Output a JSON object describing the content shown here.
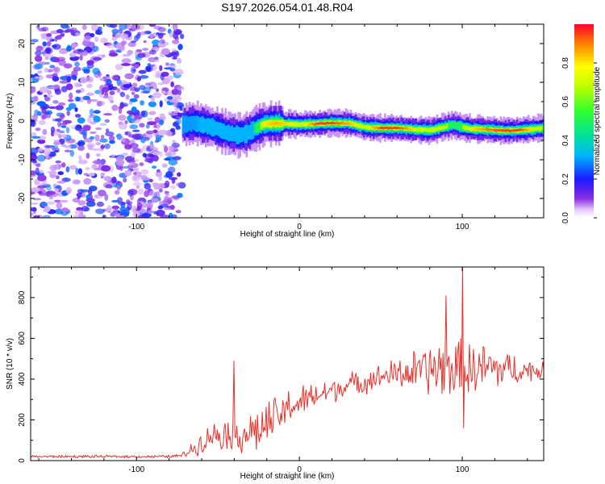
{
  "chart_data": [
    {
      "type": "heatmap",
      "title": "S197.2026.054.01.48.R04",
      "xlabel": "Height of straight line (km)",
      "ylabel": "Frequency (Hz)",
      "xlim": [
        -165,
        150
      ],
      "ylim": [
        -25,
        25
      ],
      "xticks": [
        -100,
        0,
        100
      ],
      "yticks": [
        -20,
        -10,
        0,
        10,
        20
      ],
      "colorbar": {
        "label": "Normalized spectral amplitude",
        "range": [
          0.0,
          1.0
        ],
        "ticks": [
          0.0,
          0.2,
          0.4,
          0.6,
          0.8
        ]
      },
      "noise_region": {
        "x_range": [
          -165,
          -72
        ],
        "amplitude_range": [
          0.05,
          0.3
        ]
      },
      "ridge": {
        "x": [
          -72,
          -65,
          -55,
          -45,
          -38,
          -33,
          -28,
          -22,
          -15,
          -5,
          0,
          10,
          20,
          30,
          40,
          50,
          60,
          70,
          80,
          88,
          94,
          98,
          105,
          115,
          125,
          135,
          145,
          150
        ],
        "freq": [
          -1.0,
          -0.5,
          -1.5,
          -3.0,
          -3.6,
          -3.3,
          -2.0,
          -0.8,
          -0.6,
          -0.8,
          -0.9,
          -0.7,
          -0.5,
          -0.6,
          -1.6,
          -1.8,
          -1.8,
          -2.2,
          -2.4,
          -1.6,
          -1.0,
          -1.5,
          -2.0,
          -2.2,
          -2.5,
          -2.4,
          -2.0,
          -1.8
        ],
        "amplitude": [
          0.3,
          0.3,
          0.35,
          0.4,
          0.35,
          0.35,
          0.45,
          0.8,
          0.85,
          0.8,
          0.7,
          0.95,
          0.95,
          0.85,
          0.75,
          0.95,
          0.95,
          0.8,
          0.75,
          0.7,
          0.55,
          0.6,
          0.8,
          0.9,
          0.95,
          0.95,
          0.75,
          0.6
        ]
      }
    },
    {
      "type": "line",
      "title": "",
      "xlabel": "Height of straight line (km)",
      "ylabel": "SNR (10 * v/v)",
      "xlim": [
        -165,
        150
      ],
      "ylim": [
        0,
        950
      ],
      "xticks": [
        -100,
        0,
        100
      ],
      "yticks": [
        0,
        200,
        400,
        600,
        800
      ],
      "color": "#e8302a",
      "envelope": {
        "x": [
          -165,
          -80,
          -72,
          -65,
          -55,
          -45,
          -35,
          -25,
          -15,
          -5,
          5,
          15,
          25,
          35,
          45,
          55,
          65,
          75,
          85,
          95,
          105,
          115,
          125,
          135,
          150
        ],
        "mean": [
          20,
          20,
          25,
          60,
          120,
          140,
          130,
          150,
          200,
          270,
          300,
          330,
          360,
          380,
          400,
          420,
          430,
          440,
          450,
          450,
          440,
          450,
          450,
          445,
          440
        ],
        "spread": [
          8,
          8,
          12,
          50,
          70,
          100,
          120,
          140,
          130,
          110,
          90,
          80,
          70,
          70,
          70,
          80,
          110,
          140,
          170,
          180,
          170,
          150,
          120,
          80,
          50
        ]
      },
      "peaks": [
        {
          "x": -40,
          "y": 490
        },
        {
          "x": 90,
          "y": 810
        },
        {
          "x": 100,
          "y": 950
        },
        {
          "x": 101,
          "y": 160
        }
      ]
    }
  ]
}
